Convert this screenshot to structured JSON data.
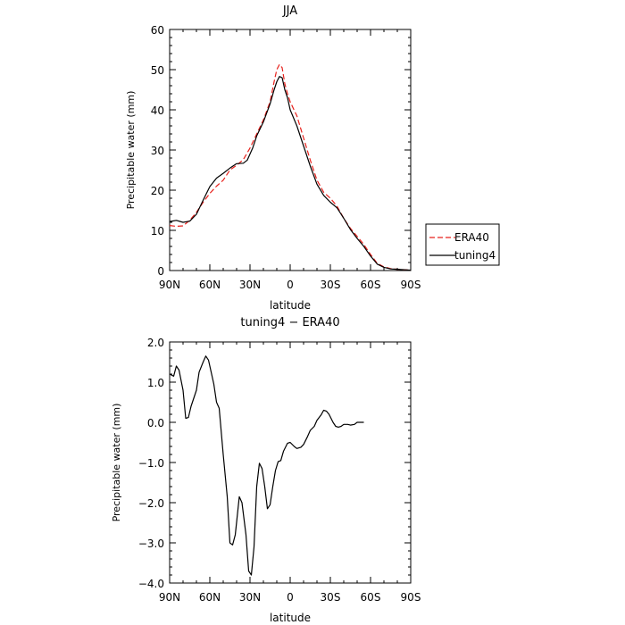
{
  "chart_data": [
    {
      "type": "line",
      "title": "JJA",
      "xlabel": "latitude",
      "ylabel": "Precipitable water (mm)",
      "xlim": [
        90,
        -90
      ],
      "ylim": [
        0,
        60
      ],
      "x_ticks": [
        90,
        60,
        30,
        0,
        -30,
        -60,
        -90
      ],
      "x_tick_labels": [
        "90N",
        "60N",
        "30N",
        "0",
        "30S",
        "60S",
        "90S"
      ],
      "y_ticks": [
        0,
        10,
        20,
        30,
        40,
        50,
        60
      ],
      "y_tick_labels": [
        "0",
        "10",
        "20",
        "30",
        "40",
        "50",
        "60"
      ],
      "legend_position": "right",
      "series": [
        {
          "name": "ERA40",
          "color": "#e8211c",
          "dash": "dashed",
          "points": [
            [
              90,
              11.2
            ],
            [
              85,
              11.0
            ],
            [
              80,
              11.1
            ],
            [
              75,
              12.5
            ],
            [
              70,
              14.5
            ],
            [
              65,
              17.0
            ],
            [
              60,
              19.2
            ],
            [
              55,
              21.0
            ],
            [
              50,
              22.5
            ],
            [
              45,
              25.0
            ],
            [
              40,
              26.2
            ],
            [
              35,
              27.6
            ],
            [
              30,
              30.5
            ],
            [
              25,
              34.0
            ],
            [
              20,
              37.5
            ],
            [
              15,
              42.0
            ],
            [
              12,
              47.0
            ],
            [
              10,
              50.0
            ],
            [
              8,
              51.3
            ],
            [
              6,
              50.5
            ],
            [
              4,
              46.5
            ],
            [
              2,
              44.0
            ],
            [
              0,
              42.0
            ],
            [
              -5,
              38.5
            ],
            [
              -10,
              33.0
            ],
            [
              -15,
              27.5
            ],
            [
              -20,
              22.5
            ],
            [
              -25,
              19.5
            ],
            [
              -30,
              18.0
            ],
            [
              -35,
              16.0
            ],
            [
              -40,
              13.0
            ],
            [
              -45,
              10.5
            ],
            [
              -50,
              8.5
            ],
            [
              -55,
              6.5
            ],
            [
              -60,
              4.0
            ],
            [
              -65,
              1.8
            ],
            [
              -70,
              0.9
            ],
            [
              -75,
              0.5
            ],
            [
              -80,
              0.3
            ],
            [
              -85,
              0.2
            ],
            [
              -90,
              0.1
            ]
          ]
        },
        {
          "name": "tuning4",
          "color": "#000000",
          "dash": "solid",
          "points": [
            [
              90,
              12.2
            ],
            [
              85,
              12.5
            ],
            [
              80,
              12.0
            ],
            [
              75,
              12.3
            ],
            [
              70,
              14.0
            ],
            [
              65,
              17.5
            ],
            [
              60,
              20.9
            ],
            [
              55,
              23.0
            ],
            [
              50,
              24.2
            ],
            [
              45,
              25.5
            ],
            [
              40,
              26.6
            ],
            [
              35,
              26.7
            ],
            [
              32,
              27.5
            ],
            [
              28,
              30.5
            ],
            [
              25,
              33.5
            ],
            [
              20,
              37.0
            ],
            [
              15,
              41.5
            ],
            [
              12,
              45.0
            ],
            [
              10,
              47.0
            ],
            [
              8,
              48.3
            ],
            [
              6,
              48.0
            ],
            [
              4,
              45.0
            ],
            [
              2,
              43.0
            ],
            [
              0,
              40.0
            ],
            [
              -5,
              36.0
            ],
            [
              -10,
              31.0
            ],
            [
              -15,
              26.0
            ],
            [
              -20,
              21.5
            ],
            [
              -25,
              18.7
            ],
            [
              -30,
              17.0
            ],
            [
              -35,
              15.6
            ],
            [
              -40,
              13.0
            ],
            [
              -45,
              10.2
            ],
            [
              -50,
              8.0
            ],
            [
              -55,
              6.0
            ],
            [
              -60,
              3.6
            ],
            [
              -65,
              1.6
            ],
            [
              -70,
              0.8
            ],
            [
              -75,
              0.4
            ],
            [
              -80,
              0.3
            ],
            [
              -85,
              0.2
            ],
            [
              -90,
              0.1
            ]
          ]
        }
      ]
    },
    {
      "type": "line",
      "title": "tuning4 − ERA40",
      "xlabel": "latitude",
      "ylabel": "Precipitable water (mm)",
      "xlim": [
        90,
        -90
      ],
      "ylim": [
        -4.0,
        2.0
      ],
      "x_ticks": [
        90,
        60,
        30,
        0,
        -30,
        -60,
        -90
      ],
      "x_tick_labels": [
        "90N",
        "60N",
        "30N",
        "0",
        "30S",
        "60S",
        "90S"
      ],
      "y_ticks": [
        2,
        1,
        0,
        -1,
        -2,
        -3,
        -4
      ],
      "y_tick_labels": [
        "2.0",
        "1.0",
        "0.0",
        "−1.0",
        "−2.0",
        "−3.0",
        "−4.0"
      ],
      "series": [
        {
          "color": "#000000",
          "dash": "solid",
          "points": [
            [
              90,
              1.2
            ],
            [
              87,
              1.15
            ],
            [
              85,
              1.4
            ],
            [
              83,
              1.3
            ],
            [
              80,
              0.8
            ],
            [
              78,
              0.1
            ],
            [
              76,
              0.12
            ],
            [
              74,
              0.4
            ],
            [
              70,
              0.8
            ],
            [
              68,
              1.25
            ],
            [
              65,
              1.5
            ],
            [
              63,
              1.65
            ],
            [
              61,
              1.55
            ],
            [
              59,
              1.25
            ],
            [
              57,
              0.95
            ],
            [
              55,
              0.5
            ],
            [
              53,
              0.35
            ],
            [
              50,
              -0.8
            ],
            [
              47,
              -1.85
            ],
            [
              45,
              -3.0
            ],
            [
              43,
              -3.05
            ],
            [
              41,
              -2.8
            ],
            [
              38,
              -1.85
            ],
            [
              36,
              -2.0
            ],
            [
              33,
              -2.8
            ],
            [
              31,
              -3.7
            ],
            [
              29,
              -3.8
            ],
            [
              27,
              -3.1
            ],
            [
              25,
              -1.6
            ],
            [
              23,
              -1.02
            ],
            [
              21,
              -1.15
            ],
            [
              19,
              -1.6
            ],
            [
              17,
              -2.15
            ],
            [
              15,
              -2.05
            ],
            [
              13,
              -1.6
            ],
            [
              11,
              -1.2
            ],
            [
              9,
              -0.98
            ],
            [
              7,
              -0.95
            ],
            [
              5,
              -0.72
            ],
            [
              2,
              -0.52
            ],
            [
              0,
              -0.5
            ],
            [
              -3,
              -0.6
            ],
            [
              -5,
              -0.65
            ],
            [
              -8,
              -0.62
            ],
            [
              -10,
              -0.55
            ],
            [
              -13,
              -0.35
            ],
            [
              -15,
              -0.2
            ],
            [
              -18,
              -0.1
            ],
            [
              -20,
              0.05
            ],
            [
              -23,
              0.18
            ],
            [
              -25,
              0.3
            ],
            [
              -27,
              0.28
            ],
            [
              -29,
              0.2
            ],
            [
              -32,
              0.0
            ],
            [
              -34,
              -0.1
            ],
            [
              -36,
              -0.12
            ],
            [
              -38,
              -0.1
            ],
            [
              -40,
              -0.05
            ],
            [
              -43,
              -0.05
            ],
            [
              -45,
              -0.07
            ],
            [
              -48,
              -0.05
            ],
            [
              -50,
              0.0
            ],
            [
              -53,
              0.0
            ],
            [
              -55,
              0.0
            ]
          ]
        }
      ]
    }
  ]
}
